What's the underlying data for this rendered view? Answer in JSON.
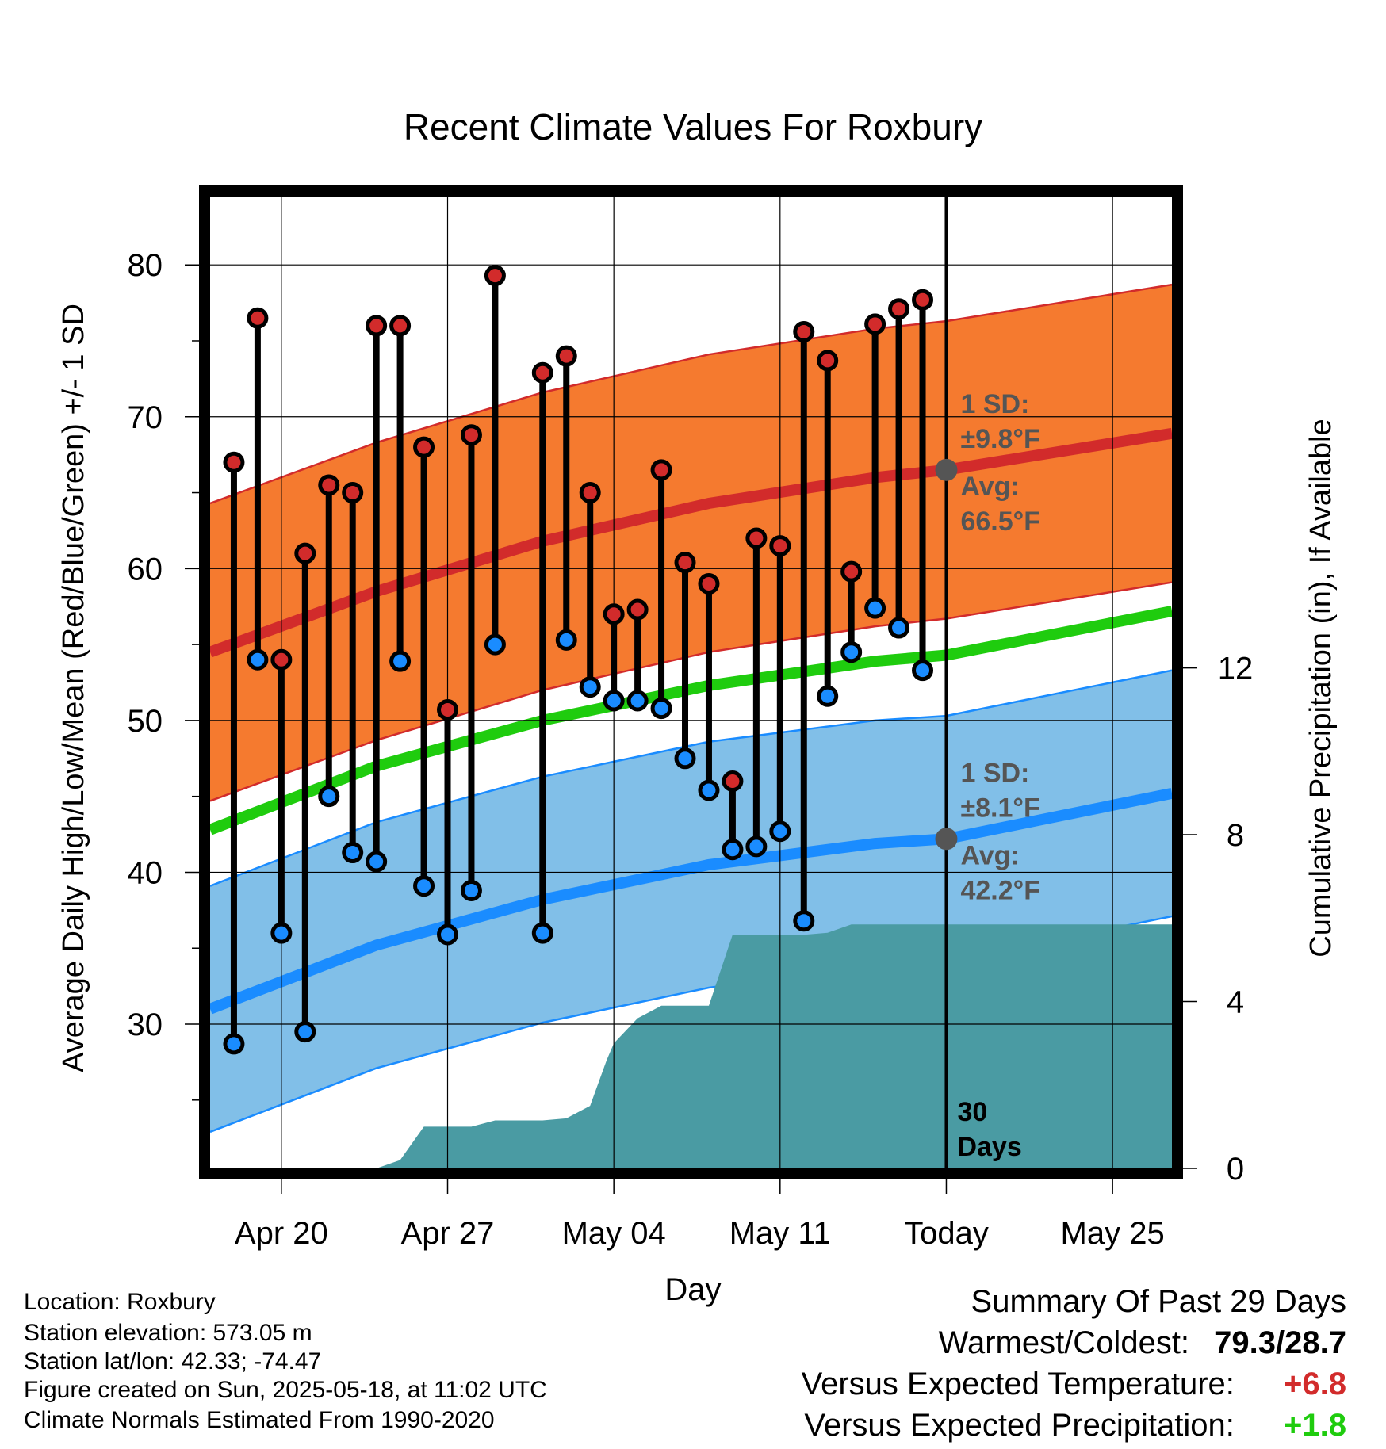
{
  "chart_data": {
    "type": "line",
    "title": "Recent Climate Values For Roxbury",
    "xlabel": "Day",
    "ylabel": "Average Daily High/Low/Mean (Red/Blue/Green) +/- 1 SD",
    "y2label": "Cumulative Precipitation (in), If Available",
    "ylim": [
      20.5,
      84.5
    ],
    "y2lim": [
      0,
      23.3
    ],
    "y_ticks": [
      30,
      40,
      50,
      60,
      70,
      80
    ],
    "y2_ticks": [
      0,
      4,
      8,
      12
    ],
    "x_ticks": [
      "Apr 20",
      "Apr 27",
      "May 04",
      "May 11",
      "Today",
      "May 25"
    ],
    "x_tick_days": [
      -28,
      -21,
      -14,
      -7,
      0,
      7
    ],
    "x_range_days": [
      -31,
      9.5
    ],
    "grid": true,
    "today_label": "30\nDays",
    "daily_obs": {
      "days": [
        -30,
        -29,
        -28,
        -27,
        -26,
        -25,
        -24,
        -23,
        -22,
        -21,
        -20,
        -19,
        -17,
        -16,
        -15,
        -14,
        -13,
        -12,
        -11,
        -10,
        -9,
        -8,
        -7,
        -6,
        -5,
        -4,
        -3,
        -2,
        -1
      ],
      "high": [
        67.0,
        76.5,
        54.0,
        61.0,
        65.5,
        65.0,
        76.0,
        76.0,
        68.0,
        50.7,
        68.8,
        79.3,
        72.9,
        74.0,
        65.0,
        57.0,
        57.3,
        66.5,
        60.4,
        59.0,
        46.0,
        62.0,
        61.5,
        75.6,
        73.7,
        59.8,
        76.1,
        77.1,
        77.7
      ],
      "low": [
        28.7,
        54.0,
        36.0,
        29.5,
        45.0,
        41.3,
        40.7,
        53.9,
        39.1,
        35.9,
        38.8,
        55.0,
        36.0,
        55.3,
        52.2,
        51.3,
        51.3,
        50.8,
        47.5,
        45.4,
        41.5,
        41.7,
        42.7,
        36.8,
        51.6,
        54.5,
        57.4,
        56.1,
        53.3
      ]
    },
    "normals": {
      "days": [
        -31,
        -24,
        -17,
        -10,
        -3,
        0,
        9.5
      ],
      "high_mean": [
        54.5,
        58.5,
        61.8,
        64.3,
        66.0,
        66.5,
        68.9
      ],
      "low_mean": [
        31.0,
        35.2,
        38.2,
        40.5,
        41.9,
        42.2,
        45.2
      ],
      "mean": [
        42.8,
        47.0,
        50.0,
        52.3,
        53.9,
        54.3,
        57.2
      ],
      "high_sd": 9.8,
      "low_sd": 8.1
    },
    "precip": {
      "days": [
        -31,
        -24,
        -23,
        -22,
        -21,
        -20,
        -19,
        -18,
        -17,
        -16,
        -15,
        -14.3,
        -14,
        -13,
        -12,
        -11,
        -10,
        -9,
        -8,
        -7,
        -6,
        -5,
        -4,
        -3,
        -2,
        -1,
        0,
        9.5
      ],
      "cumulative": [
        0,
        0,
        0.2,
        1.0,
        1.0,
        1.0,
        1.15,
        1.15,
        1.15,
        1.2,
        1.5,
        2.6,
        3.0,
        3.6,
        3.9,
        3.9,
        3.9,
        5.6,
        5.6,
        5.6,
        5.6,
        5.65,
        5.85,
        5.85,
        5.85,
        5.85,
        5.85,
        5.85
      ]
    },
    "annotations": {
      "high": {
        "sd_line1": "1 SD:",
        "sd_line2": "±9.8°F",
        "avg_line1": "Avg:",
        "avg_line2": "66.5°F",
        "value": 66.5
      },
      "low": {
        "sd_line1": "1 SD:",
        "sd_line2": "±8.1°F",
        "avg_line1": "Avg:",
        "avg_line2": "42.2°F",
        "value": 42.2
      }
    },
    "colors": {
      "high_band": "#f57a2f",
      "high_line": "#d22b2b",
      "low_band": "#81bfe8",
      "low_line": "#1a8cff",
      "mean_line": "#1fcc0e",
      "precip_fill": "#4a9ba3",
      "high_dot": "#d22b2b",
      "low_dot": "#1a8cff",
      "annotation_text": "#555555",
      "today_marker": "#555555"
    }
  },
  "info": {
    "location": "Location: Roxbury",
    "elevation": "Station elevation: 573.05 m",
    "latlon": "Station lat/lon: 42.33; -74.47",
    "created": "Figure created on Sun, 2025-05-18, at 11:02 UTC",
    "normals": "Climate Normals Estimated From 1990-2020"
  },
  "summary": {
    "title": "Summary Of Past 29 Days",
    "warm_cold_label": "Warmest/Coldest:",
    "warm_cold_value": "79.3/28.7",
    "temp_label": "Versus Expected Temperature:",
    "temp_value": "+6.8",
    "temp_color": "#d22b2b",
    "precip_label": "Versus Expected Precipitation:",
    "precip_value": "+1.8",
    "precip_color": "#1fcc0e"
  }
}
